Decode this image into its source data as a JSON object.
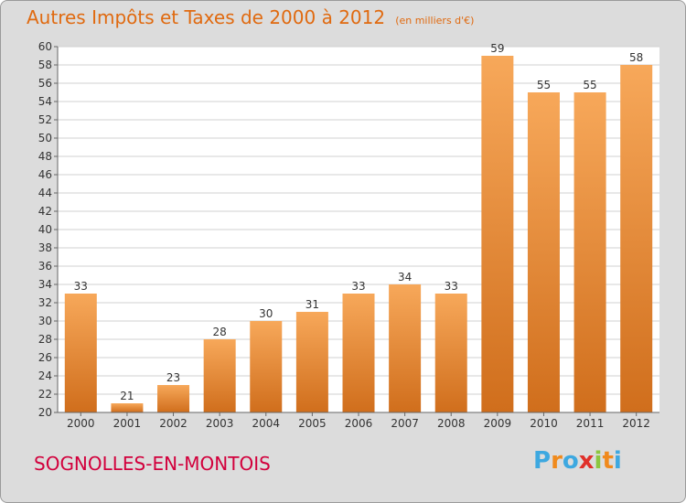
{
  "chart_data": {
    "type": "bar",
    "title": "Autres Impôts et Taxes de 2000 à 2012",
    "subtitle": "(en milliers d'€)",
    "categories": [
      "2000",
      "2001",
      "2002",
      "2003",
      "2004",
      "2005",
      "2006",
      "2007",
      "2008",
      "2009",
      "2010",
      "2011",
      "2012"
    ],
    "values": [
      33,
      21,
      23,
      28,
      30,
      31,
      33,
      34,
      33,
      59,
      55,
      55,
      58
    ],
    "xlabel": "",
    "ylabel": "",
    "ylim": [
      20,
      60
    ],
    "yticks": [
      20,
      22,
      24,
      26,
      28,
      30,
      32,
      34,
      36,
      38,
      40,
      42,
      44,
      46,
      48,
      50,
      52,
      54,
      56,
      58,
      60
    ],
    "grid": true,
    "colors": {
      "bar_top": "#f7a85a",
      "bar_bottom": "#d06e1c",
      "accent": "#e06a10"
    }
  },
  "location": "SOGNOLLES-EN-MONTOIS",
  "logo": {
    "letters": [
      "P",
      "r",
      "o",
      "x",
      "i",
      "t",
      "i"
    ],
    "colors": [
      "#3da8e0",
      "#f08a1c",
      "#3da8e0",
      "#e0302a",
      "#8cc63f",
      "#f08a1c",
      "#3da8e0"
    ]
  }
}
